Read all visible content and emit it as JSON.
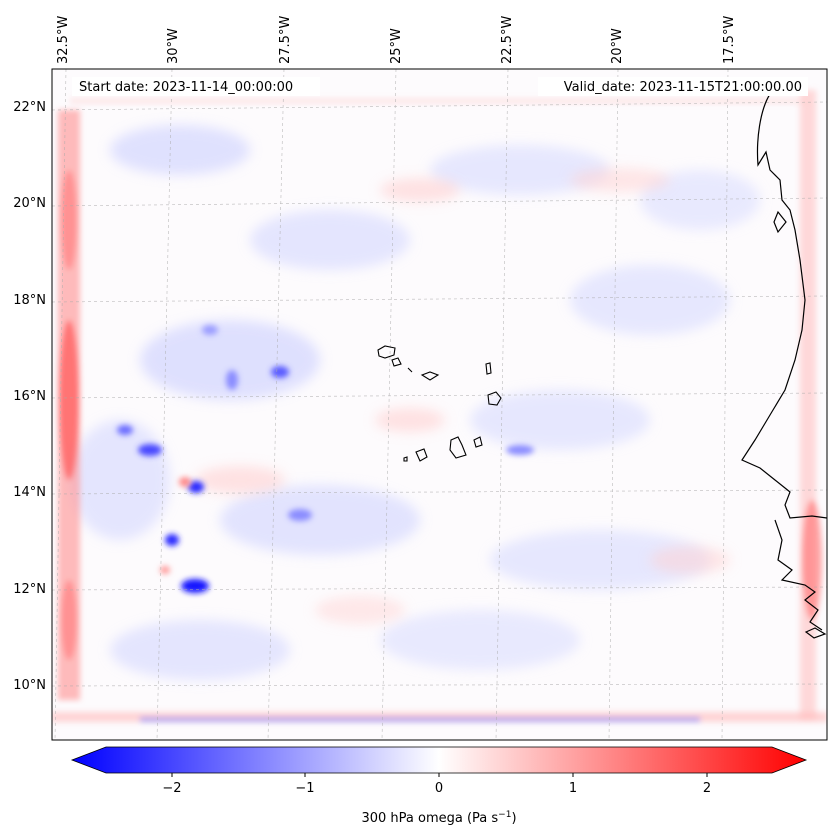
{
  "map": {
    "start_date_label": "Start date: 2023-11-14_00:00:00",
    "valid_date_label": "Valid_date: 2023-11-15T21:00:00.00",
    "lon_labels": [
      "32.5°W",
      "30°W",
      "27.5°W",
      "25°W",
      "22.5°W",
      "20°W",
      "17.5°W"
    ],
    "lat_labels": [
      "22°N",
      "20°N",
      "18°N",
      "16°N",
      "14°N",
      "12°N",
      "10°N"
    ],
    "field": "300 hPa omega",
    "colormap": "bwr",
    "colors": {
      "neg": "#0000ff",
      "zero": "#ffffff",
      "pos": "#ff0000",
      "coast": "#000000",
      "grid": "#aaaaaa"
    }
  },
  "colorbar": {
    "ticks": [
      "−2",
      "−1",
      "0",
      "1",
      "2"
    ],
    "range": [
      -2.6,
      2.6
    ],
    "label_main": "300 hPa omega (Pa s",
    "label_sup": "−1",
    "label_end": ")"
  }
}
